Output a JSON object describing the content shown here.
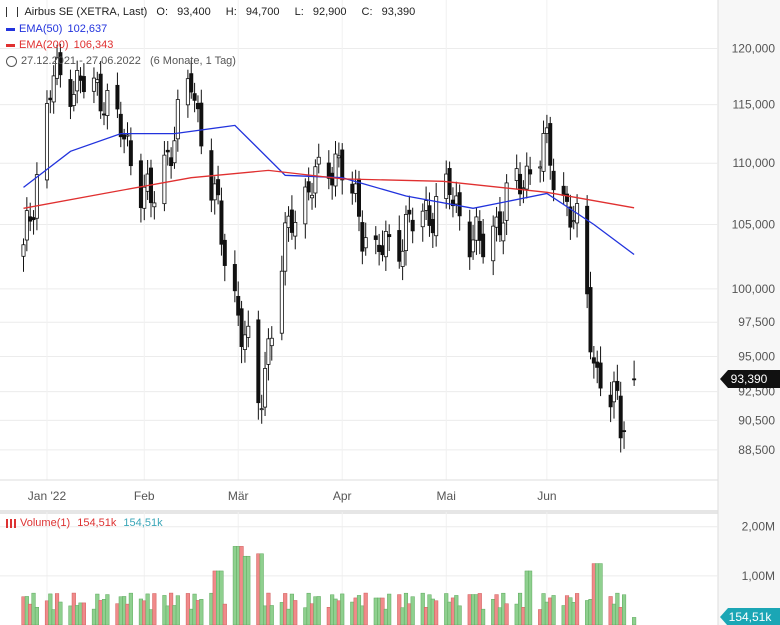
{
  "header": {
    "instrument": "Airbus SE (XETRA, Last)",
    "open_label": "O:",
    "open": "93,400",
    "high_label": "H:",
    "high": "94,700",
    "low_label": "L:",
    "low": "92,900",
    "close_label": "C:",
    "close": "93,390",
    "ema50_label": "EMA(50)",
    "ema50_value": "102,637",
    "ema200_label": "EMA(200)",
    "ema200_value": "106,343",
    "range": "27.12.2021 - 27.06.2022",
    "range_note": "(6 Monate, 1 Tag)",
    "volume_label": "Volume(1)",
    "volume_red": "154,51k",
    "volume_teal": "154,51k"
  },
  "colors": {
    "ema50": "#2233dd",
    "ema200": "#e03030",
    "up": "#ffffff",
    "down": "#111111",
    "vol_up": "#8fd08f",
    "vol_down": "#f08a8a",
    "vol_label_teal": "#3aa6b8",
    "last_price_bg": "#111111",
    "last_volume_bg": "#1ba6b5"
  },
  "chart_data": [
    {
      "type": "candlestick",
      "title": "Airbus SE (XETRA, Last)",
      "y_scale": "log",
      "ylim": [
        86500,
        124500
      ],
      "y_ticks": [
        "120,000",
        "115,000",
        "110,000",
        "105,000",
        "100,000",
        "97,500",
        "95,000",
        "92,500",
        "90,500",
        "88,500"
      ],
      "y_tick_values": [
        120000,
        115000,
        110000,
        105000,
        100000,
        97500,
        95000,
        92500,
        90500,
        88500
      ],
      "x_labels": [
        "Jan '22",
        "Feb",
        "Mär",
        "Apr",
        "Mai",
        "Jun"
      ],
      "x_label_dates": [
        "2022-01-03",
        "2022-02-01",
        "2022-03-01",
        "2022-04-01",
        "2022-05-02",
        "2022-06-01"
      ],
      "last_price": "93,390",
      "ohlc_sample": [
        {
          "date": "2021-12-27",
          "close": 102500
        },
        {
          "date": "2022-01-05",
          "close": 117500
        },
        {
          "date": "2022-01-20",
          "close": 116000
        },
        {
          "date": "2022-02-03",
          "close": 106500
        },
        {
          "date": "2022-02-15",
          "close": 117000
        },
        {
          "date": "2022-02-24",
          "close": 104000
        },
        {
          "date": "2022-03-07",
          "close": 91500
        },
        {
          "date": "2022-03-17",
          "close": 106000
        },
        {
          "date": "2022-03-30",
          "close": 110500
        },
        {
          "date": "2022-04-11",
          "close": 102500
        },
        {
          "date": "2022-05-03",
          "close": 107500
        },
        {
          "date": "2022-05-12",
          "close": 103000
        },
        {
          "date": "2022-05-31",
          "close": 111500
        },
        {
          "date": "2022-06-10",
          "close": 104500
        },
        {
          "date": "2022-06-16",
          "close": 93500
        },
        {
          "date": "2022-06-23",
          "close": 90800
        },
        {
          "date": "2022-06-27",
          "open": 93400,
          "high": 94700,
          "low": 92900,
          "close": 93390
        }
      ],
      "series": [
        {
          "name": "EMA(50)",
          "last": 102637,
          "points": [
            {
              "date": "2021-12-27",
              "value": 108000
            },
            {
              "date": "2022-01-10",
              "value": 111000
            },
            {
              "date": "2022-01-25",
              "value": 112500
            },
            {
              "date": "2022-02-10",
              "value": 112500
            },
            {
              "date": "2022-02-28",
              "value": 113200
            },
            {
              "date": "2022-03-15",
              "value": 109000
            },
            {
              "date": "2022-04-01",
              "value": 108800
            },
            {
              "date": "2022-04-20",
              "value": 107300
            },
            {
              "date": "2022-05-10",
              "value": 106300
            },
            {
              "date": "2022-06-01",
              "value": 107500
            },
            {
              "date": "2022-06-15",
              "value": 105000
            },
            {
              "date": "2022-06-27",
              "value": 102637
            }
          ]
        },
        {
          "name": "EMA(200)",
          "last": 106343,
          "points": [
            {
              "date": "2021-12-27",
              "value": 106300
            },
            {
              "date": "2022-01-20",
              "value": 107500
            },
            {
              "date": "2022-02-15",
              "value": 108800
            },
            {
              "date": "2022-03-10",
              "value": 109400
            },
            {
              "date": "2022-04-01",
              "value": 108700
            },
            {
              "date": "2022-05-01",
              "value": 108500
            },
            {
              "date": "2022-06-01",
              "value": 107600
            },
            {
              "date": "2022-06-27",
              "value": 106343
            }
          ]
        }
      ]
    },
    {
      "type": "bar",
      "title": "Volume(1)",
      "ylim": [
        0,
        2300000
      ],
      "y_ticks": [
        "2,00M",
        "1,00M"
      ],
      "y_tick_values": [
        2000000,
        1000000
      ],
      "last_value": "154,51k",
      "values": [
        {
          "date": "2022-01-14",
          "value": 450000
        },
        {
          "date": "2022-02-23",
          "value": 1100000
        },
        {
          "date": "2022-03-01",
          "value": 1600000
        },
        {
          "date": "2022-03-04",
          "value": 1400000
        },
        {
          "date": "2022-03-07",
          "value": 1450000
        },
        {
          "date": "2022-04-12",
          "value": 550000
        },
        {
          "date": "2022-05-10",
          "value": 620000
        },
        {
          "date": "2022-05-27",
          "value": 1100000
        },
        {
          "date": "2022-06-16",
          "value": 1250000
        },
        {
          "date": "2022-06-27",
          "value": 154510
        }
      ]
    }
  ]
}
